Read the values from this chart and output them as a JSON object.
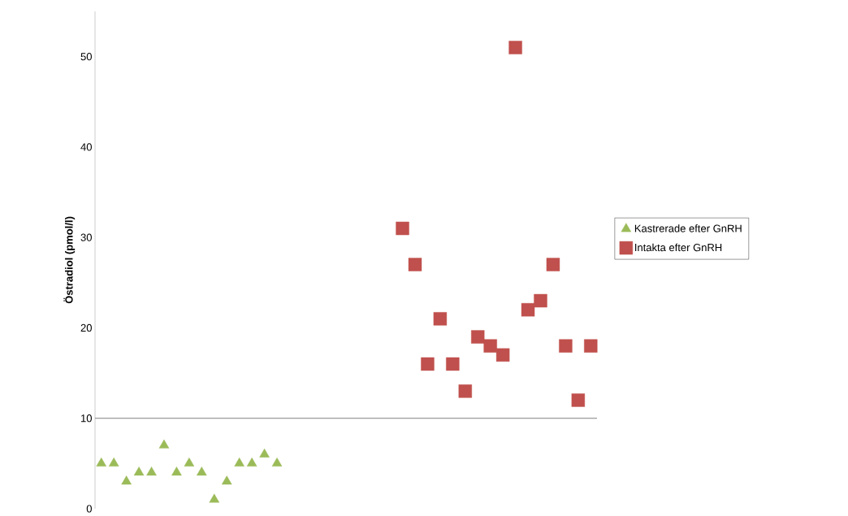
{
  "chart_data": {
    "type": "scatter",
    "ylabel": "Östradiol (pmol/l)",
    "categories": [
      null,
      null,
      null,
      null,
      null,
      null,
      null,
      null,
      null,
      null,
      null,
      null,
      null,
      null,
      null,
      null,
      null,
      null,
      null,
      null,
      null,
      null,
      null,
      null,
      null,
      null,
      null,
      null,
      null,
      null,
      null,
      null,
      null,
      null,
      null,
      null,
      null,
      null,
      null,
      null
    ],
    "series": [
      {
        "name": "Kastrerade efter GnRH",
        "color": "#9bbb59",
        "marker": "triangle",
        "values": [
          5,
          5,
          3,
          4,
          4,
          7,
          4,
          5,
          4,
          1,
          3,
          5,
          5,
          6,
          5,
          null,
          null,
          null,
          null,
          null,
          null,
          null,
          null,
          null,
          null,
          null,
          null,
          null,
          null,
          null,
          null,
          null,
          null,
          null,
          null,
          null,
          null,
          null,
          null,
          null
        ]
      },
      {
        "name": "Intakta efter GnRH",
        "color": "#c0504d",
        "marker": "square",
        "values": [
          null,
          null,
          null,
          null,
          null,
          null,
          null,
          null,
          null,
          null,
          null,
          null,
          null,
          null,
          null,
          null,
          null,
          null,
          null,
          null,
          null,
          null,
          null,
          null,
          31,
          27,
          16,
          21,
          16,
          13,
          19,
          18,
          17,
          51,
          22,
          23,
          27,
          18,
          12,
          18
        ]
      }
    ],
    "ylim": [
      0,
      55
    ],
    "yticks": [
      0,
      10,
      20,
      30,
      40,
      50
    ],
    "ref_lines": [
      {
        "axis": "y",
        "value": 10
      }
    ],
    "tick_labels": "y",
    "legend": "right",
    "grid": false
  }
}
